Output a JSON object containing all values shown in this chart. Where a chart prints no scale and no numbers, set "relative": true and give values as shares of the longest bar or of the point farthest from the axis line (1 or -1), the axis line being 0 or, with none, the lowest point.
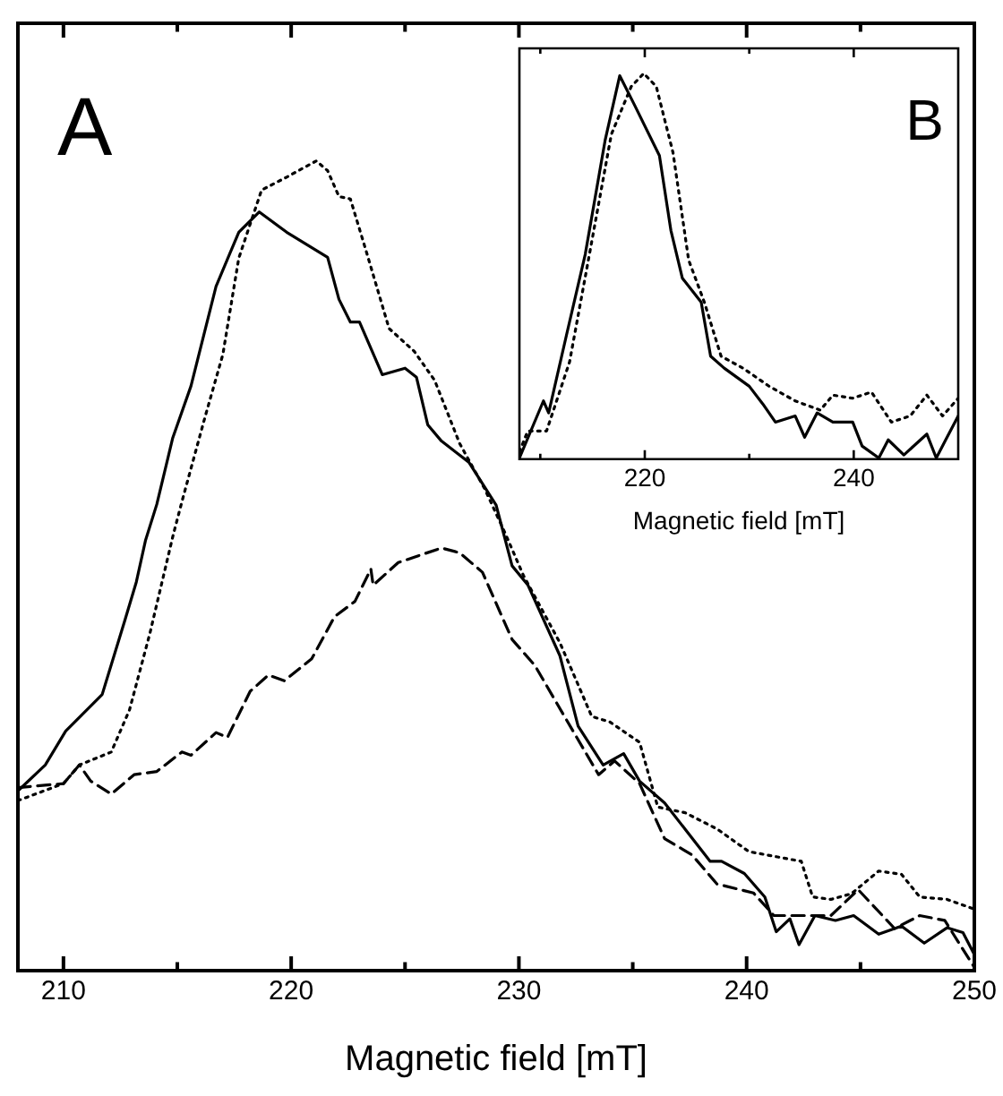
{
  "chart_data": [
    {
      "type": "line",
      "relative": true,
      "xlabel": "Magnetic field [mT]",
      "annotations": [
        "A"
      ],
      "xlim": [
        208,
        250
      ],
      "xticks": [
        210,
        {
          "value": 215,
          "label": null
        },
        220,
        {
          "value": 225,
          "label": null
        },
        230,
        {
          "value": 235,
          "label": null
        },
        240,
        {
          "value": 245,
          "label": null
        },
        250
      ],
      "grid": false,
      "legend": false,
      "marker": "none",
      "series": [
        {
          "color": "#000000",
          "line_style": "solid",
          "x": [
            208.0,
            209.2,
            210.1,
            211.7,
            212.7,
            213.2,
            213.6,
            214.1,
            214.8,
            215.6,
            216.7,
            217.7,
            218.6,
            219.8,
            221.6,
            222.1,
            222.6,
            223.0,
            224.0,
            225.0,
            225.5,
            226.0,
            226.6,
            227.8,
            229.0,
            229.7,
            230.4,
            231.8,
            232.6,
            233.7,
            234.6,
            235.3,
            236.4,
            238.4,
            238.9,
            239.9,
            240.8,
            241.3,
            241.9,
            242.3,
            243.0,
            243.9,
            244.7,
            245.8,
            246.8,
            247.8,
            248.8,
            249.5,
            250.0
          ],
          "values": [
            0.222,
            0.254,
            0.296,
            0.341,
            0.433,
            0.48,
            0.531,
            0.576,
            0.658,
            0.722,
            0.845,
            0.912,
            0.937,
            0.912,
            0.881,
            0.829,
            0.801,
            0.801,
            0.736,
            0.744,
            0.733,
            0.674,
            0.654,
            0.628,
            0.575,
            0.5,
            0.476,
            0.389,
            0.302,
            0.254,
            0.268,
            0.234,
            0.207,
            0.135,
            0.135,
            0.12,
            0.091,
            0.048,
            0.064,
            0.032,
            0.068,
            0.062,
            0.068,
            0.045,
            0.055,
            0.034,
            0.053,
            0.047,
            0.02
          ]
        },
        {
          "color": "#000000",
          "line_style": "dotted",
          "x": [
            208.0,
            210.0,
            210.7,
            212.1,
            212.9,
            213.8,
            214.8,
            215.2,
            216.2,
            217.0,
            217.7,
            218.7,
            219.8,
            221.1,
            221.6,
            222.1,
            222.6,
            223.3,
            224.3,
            225.4,
            226.3,
            227.4,
            228.5,
            229.4,
            230.2,
            231.8,
            233.2,
            234.0,
            235.3,
            236.1,
            237.3,
            238.7,
            240.1,
            242.4,
            242.9,
            243.7,
            244.6,
            245.8,
            246.8,
            247.6,
            248.8,
            250.0
          ],
          "values": [
            0.21,
            0.231,
            0.254,
            0.27,
            0.322,
            0.417,
            0.536,
            0.579,
            0.682,
            0.761,
            0.88,
            0.964,
            0.98,
            1.0,
            0.988,
            0.956,
            0.953,
            0.888,
            0.793,
            0.765,
            0.729,
            0.651,
            0.595,
            0.54,
            0.488,
            0.405,
            0.314,
            0.307,
            0.282,
            0.202,
            0.195,
            0.175,
            0.147,
            0.135,
            0.091,
            0.088,
            0.095,
            0.123,
            0.119,
            0.091,
            0.088,
            0.076
          ]
        },
        {
          "color": "#000000",
          "line_style": "dashed",
          "x": [
            208.0,
            210.0,
            210.7,
            211.2,
            212.1,
            213.1,
            214.1,
            215.2,
            215.6,
            216.7,
            217.2,
            218.2,
            219.0,
            219.7,
            220.9,
            221.9,
            222.8,
            223.5,
            223.6,
            224.7,
            226.6,
            227.4,
            228.4,
            229.7,
            230.7,
            232.0,
            233.5,
            234.2,
            235.3,
            236.4,
            237.6,
            238.7,
            240.3,
            241.2,
            242.6,
            243.7,
            244.9,
            246.5,
            247.6,
            248.7,
            250.0
          ],
          "values": [
            0.226,
            0.231,
            0.254,
            0.234,
            0.218,
            0.242,
            0.246,
            0.27,
            0.266,
            0.294,
            0.288,
            0.345,
            0.365,
            0.358,
            0.385,
            0.437,
            0.456,
            0.496,
            0.476,
            0.504,
            0.522,
            0.516,
            0.492,
            0.409,
            0.377,
            0.314,
            0.242,
            0.259,
            0.231,
            0.163,
            0.143,
            0.107,
            0.096,
            0.068,
            0.068,
            0.068,
            0.1,
            0.052,
            0.068,
            0.062,
            0.004
          ]
        }
      ]
    },
    {
      "type": "line",
      "relative": true,
      "xlabel": "Magnetic field [mT]",
      "annotations": [
        "B"
      ],
      "xlim": [
        208,
        250
      ],
      "xticks": [
        {
          "value": 210,
          "label": null
        },
        220,
        {
          "value": 230,
          "label": null
        },
        240
      ],
      "grid": false,
      "legend": false,
      "marker": "none",
      "series": [
        {
          "color": "#000000",
          "line_style": "solid",
          "x": [
            208.0,
            210.3,
            210.8,
            212.5,
            214.3,
            216.2,
            217.6,
            219.0,
            221.4,
            222.5,
            223.6,
            225.4,
            226.3,
            227.6,
            230.0,
            231.3,
            232.5,
            234.4,
            235.3,
            236.5,
            238.0,
            239.9,
            240.8,
            242.4,
            243.3,
            244.8,
            247.0,
            247.9,
            248.8,
            250.0
          ],
          "values": [
            0.003,
            0.151,
            0.12,
            0.321,
            0.531,
            0.826,
            0.994,
            0.919,
            0.787,
            0.593,
            0.469,
            0.407,
            0.267,
            0.236,
            0.189,
            0.143,
            0.096,
            0.112,
            0.057,
            0.12,
            0.096,
            0.096,
            0.034,
            0.003,
            0.05,
            0.011,
            0.065,
            0.003,
            0.05,
            0.112
          ]
        },
        {
          "color": "#000000",
          "line_style": "dotted",
          "x": [
            208.0,
            208.8,
            210.6,
            212.8,
            214.7,
            216.8,
            218.7,
            219.9,
            221.1,
            222.7,
            224.2,
            225.7,
            227.3,
            229.4,
            231.9,
            234.4,
            236.8,
            238.0,
            239.9,
            241.7,
            243.6,
            245.4,
            247.0,
            248.5,
            250.0
          ],
          "values": [
            0.019,
            0.073,
            0.073,
            0.252,
            0.531,
            0.842,
            0.966,
            1.0,
            0.966,
            0.795,
            0.516,
            0.407,
            0.267,
            0.236,
            0.189,
            0.151,
            0.127,
            0.166,
            0.158,
            0.174,
            0.096,
            0.112,
            0.166,
            0.112,
            0.158
          ]
        }
      ]
    }
  ]
}
